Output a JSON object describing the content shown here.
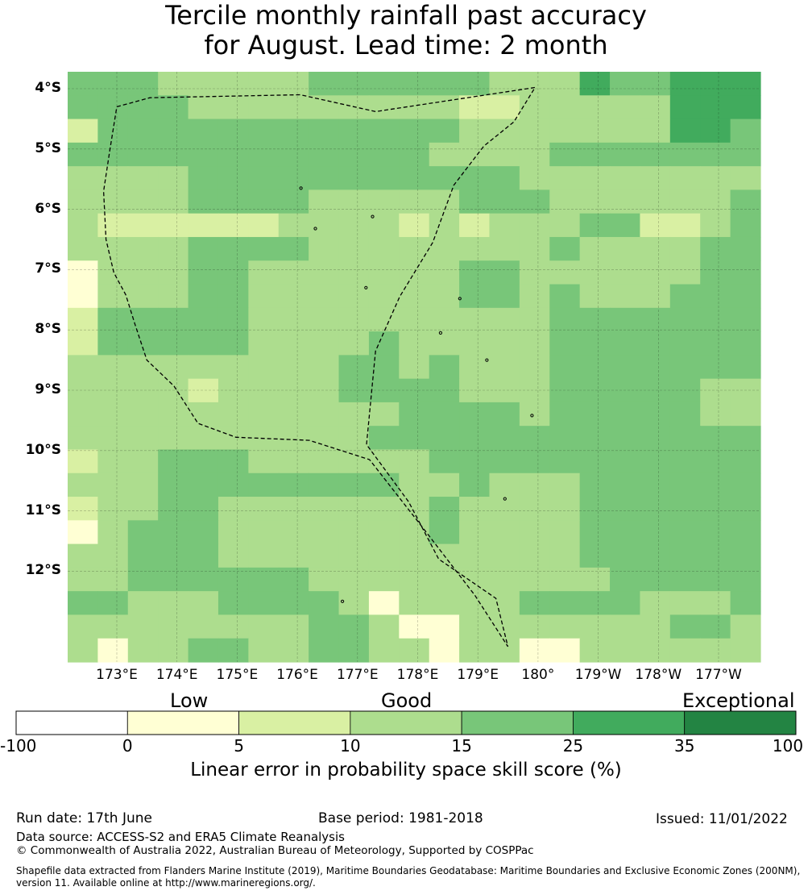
{
  "title": {
    "line1": "Tercile monthly rainfall past accuracy",
    "line2": "for August. Lead time: 2 month"
  },
  "map": {
    "lat_labels": [
      "4°S",
      "5°S",
      "6°S",
      "7°S",
      "8°S",
      "9°S",
      "10°S",
      "11°S",
      "12°S"
    ],
    "lon_labels": [
      "173°E",
      "174°E",
      "175°E",
      "176°E",
      "177°E",
      "178°E",
      "179°E",
      "180°",
      "179°W",
      "178°W",
      "177°W"
    ],
    "grid_codes": [
      "33322222333333222433444",
      "33332222222221122222444",
      "13333333333332222222443",
      "33333333333322223333333",
      "22223333333333322222222",
      "22223333222223332222223",
      "21111112222121222331123",
      "22223333222222223222233",
      "02223322222223322222233",
      "02223322222223323222333",
      "13333322222222223333333",
      "13333322223222223333333",
      "22222222233232223333333",
      "22221222233332223333322",
      "22222222222333323333322",
      "22222222223333333333333",
      "12233322222233333333333",
      "22233333333223222333333",
      "12233222222232222333333",
      "02333222222232222333333",
      "22333222222222222333333",
      "22333333222222222233333",
      "33222333320222233332223",
      "22222222332002222222332",
      "20223322332202200222222"
    ],
    "grid_note": "codes index into colorbar.colors by skill bin (0=0-5,1=5-10,2=10-15,3=15-25,4=25-35)",
    "eez_boundary": [
      [
        173.0,
        -4.3
      ],
      [
        173.55,
        -4.15
      ],
      [
        176.05,
        -4.1
      ],
      [
        177.3,
        -4.38
      ],
      [
        179.95,
        -3.98
      ],
      [
        179.6,
        -4.55
      ],
      [
        179.1,
        -4.95
      ],
      [
        178.6,
        -5.6
      ],
      [
        178.25,
        -6.55
      ],
      [
        177.7,
        -7.45
      ],
      [
        177.3,
        -8.35
      ],
      [
        177.15,
        -9.9
      ],
      [
        177.85,
        -10.85
      ],
      [
        178.35,
        -11.8
      ],
      [
        179.3,
        -12.45
      ],
      [
        179.5,
        -13.25
      ],
      [
        178.95,
        -12.4
      ],
      [
        178.1,
        -11.3
      ],
      [
        177.2,
        -10.15
      ],
      [
        176.2,
        -9.83
      ],
      [
        174.98,
        -9.78
      ],
      [
        174.35,
        -9.55
      ],
      [
        173.95,
        -8.93
      ],
      [
        173.5,
        -8.5
      ],
      [
        173.3,
        -7.9
      ],
      [
        173.15,
        -7.42
      ],
      [
        172.95,
        -7.05
      ],
      [
        172.82,
        -6.5
      ],
      [
        172.78,
        -5.7
      ],
      [
        172.88,
        -5.05
      ],
      [
        173.0,
        -4.3
      ]
    ],
    "islands": [
      [
        176.06,
        -5.65
      ],
      [
        176.3,
        -6.32
      ],
      [
        177.14,
        -7.3
      ],
      [
        177.25,
        -6.12
      ],
      [
        178.7,
        -7.48
      ],
      [
        178.38,
        -8.05
      ],
      [
        179.15,
        -8.5
      ],
      [
        179.9,
        -9.42
      ],
      [
        179.45,
        -10.8
      ],
      [
        176.75,
        -12.5
      ]
    ]
  },
  "colorbar": {
    "category_labels": [
      "Low",
      "Good",
      "Exceptional"
    ],
    "ticks": [
      "-100",
      "0",
      "5",
      "10",
      "15",
      "25",
      "35",
      "100"
    ],
    "colors": [
      "#ffffd4",
      "#d9f0a3",
      "#addd8e",
      "#78c679",
      "#41ab5d",
      "#238443",
      "#ffffff"
    ],
    "bin_order": [
      "#ffffff",
      "#ffffd4",
      "#d9f0a3",
      "#addd8e",
      "#78c679",
      "#41ab5d",
      "#238443"
    ],
    "title": "Linear error in probability space skill score (%)"
  },
  "footer": {
    "run_date": "Run date: 17th June",
    "base_period": "Base period: 1981-2018",
    "issued": "Issued: 11/01/2022",
    "data_source": "Data source: ACCESS-S2 and ERA5 Climate Reanalysis",
    "copyright": "© Commonwealth of Australia 2022, Australian Bureau of Meteorology, Supported by COSPPac",
    "shapefile_line1": "Shapefile data extracted from Flanders Marine Institute (2019), Maritime Boundaries Geodatabase: Maritime Boundaries and Exclusive Economic Zones (200NM),",
    "shapefile_line2": "version 11. Available online at http://www.marineregions.org/."
  }
}
